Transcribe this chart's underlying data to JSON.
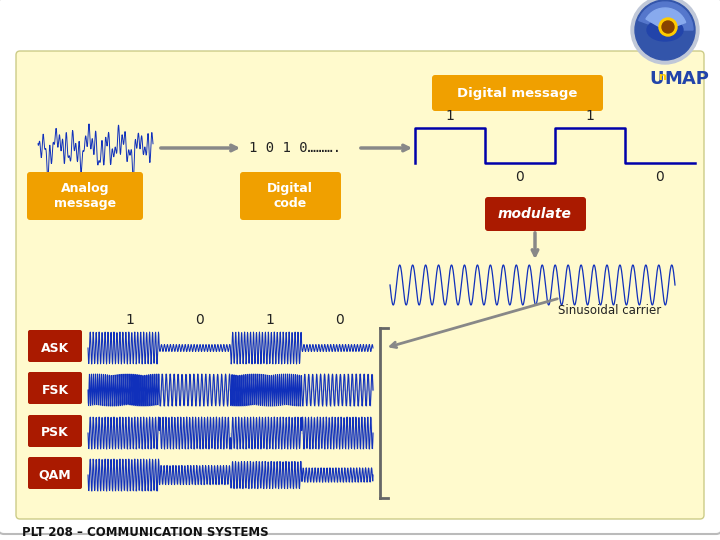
{
  "bg_color": "#FFFACD",
  "outer_bg": "#FFFFFF",
  "title_text": "PLT 208 – COMMUNICATION SYSTEMS",
  "analog_label": "Analog\nmessage",
  "digital_code_label": "Digital\ncode",
  "digital_message_label": "Digital message",
  "modulate_label": "modulate",
  "sinusoidal_label": "Sinusoidal carrier",
  "digital_code_text": "1 0 1 0……….",
  "modulation_types": [
    "ASK",
    "FSK",
    "PSK",
    "QAM"
  ],
  "orange_box_color": "#F0A000",
  "red_box_color": "#AA1A00",
  "blue_wave_color": "#1030BB",
  "digital_signal_color": "#0000AA",
  "arrow_color": "#888888",
  "white_text": "#FFFFFF",
  "dark_text": "#111111"
}
